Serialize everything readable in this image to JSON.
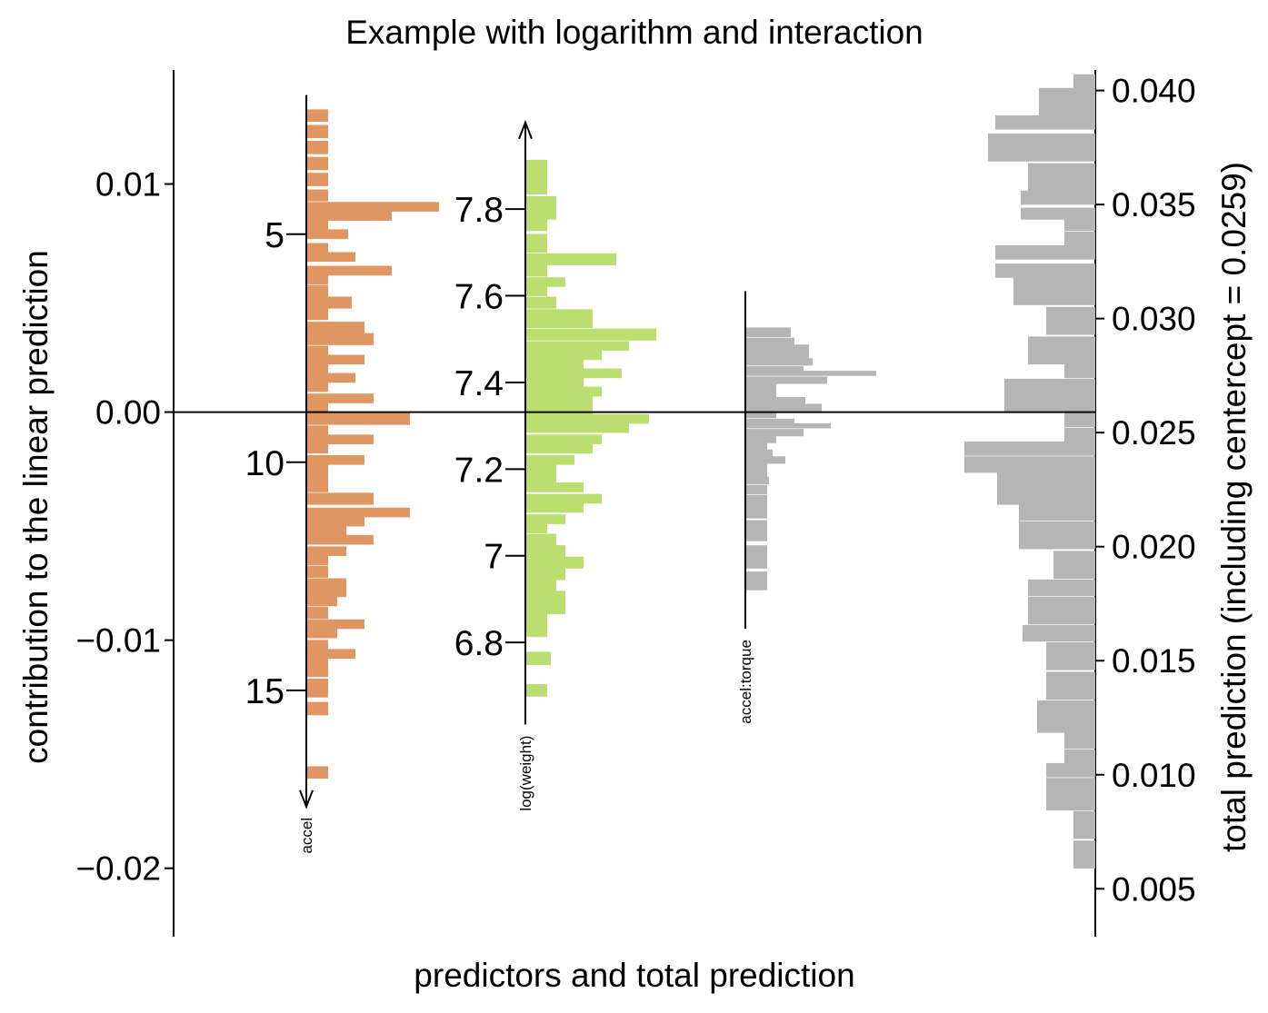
{
  "chart_data": {
    "type": "bar",
    "title": "Example with logarithm and interaction",
    "xlabel": "predictors and total prediction",
    "ylabel": "contribution to the linear prediction",
    "y2label": "total prediction (including centercept = 0.0259)",
    "ylim": [
      -0.023,
      0.015
    ],
    "yticks": [
      "0.01",
      "0.00",
      "−0.01",
      "−0.02"
    ],
    "ytick_values": [
      0.01,
      0.0,
      -0.01,
      -0.02
    ],
    "y2lim": [
      0.0029,
      0.0409
    ],
    "y2ticks": [
      "0.005",
      "0.010",
      "0.015",
      "0.020",
      "0.025",
      "0.030",
      "0.035",
      "0.040"
    ],
    "y2tick_values": [
      0.005,
      0.01,
      0.015,
      0.02,
      0.025,
      0.03,
      0.035,
      0.04
    ],
    "colors": {
      "accel": "#e09662",
      "log_weight": "#bade6f",
      "interaction": "#b5b5b5",
      "total": "#b5b5b5"
    },
    "predictors": [
      {
        "key": "accel",
        "label": "accel",
        "axis_direction": "down",
        "axis_range": [
          0.0139,
          -0.0173
        ],
        "ticks": [
          {
            "label": "5",
            "y": 0.0078
          },
          {
            "label": "10",
            "y": -0.0022
          },
          {
            "label": "15",
            "y": -0.0122
          }
        ],
        "hist_y": [
          0.013,
          0.0123,
          0.0116,
          0.0109,
          0.0102,
          0.0095,
          0.009,
          0.0086,
          0.0082,
          0.0078,
          0.0072,
          0.0068,
          0.0062,
          0.0058,
          0.0053,
          0.0048,
          0.0043,
          0.0037,
          0.0032,
          0.0027,
          0.0023,
          0.0019,
          0.0015,
          0.0011,
          0.0006,
          0.0002,
          -0.0003,
          -0.0008,
          -0.0012,
          -0.0016,
          -0.0021,
          -0.0025,
          -0.0029,
          -0.0033,
          -0.0038,
          -0.0044,
          -0.0048,
          -0.0052,
          -0.0056,
          -0.0061,
          -0.0065,
          -0.007,
          -0.0075,
          -0.0079,
          -0.0083,
          -0.0088,
          -0.0093,
          -0.0097,
          -0.0102,
          -0.0106,
          -0.011,
          -0.0114,
          -0.0119,
          -0.0123,
          -0.013,
          -0.0158
        ],
        "hist_counts": [
          24,
          24,
          24,
          24,
          24,
          24,
          146,
          94,
          24,
          46,
          24,
          54,
          94,
          24,
          24,
          50,
          24,
          64,
          74,
          24,
          64,
          24,
          54,
          24,
          74,
          24,
          114,
          24,
          74,
          24,
          64,
          24,
          24,
          24,
          74,
          114,
          64,
          44,
          74,
          44,
          24,
          24,
          44,
          44,
          34,
          24,
          64,
          34,
          24,
          54,
          24,
          24,
          24,
          24,
          24,
          24
        ]
      },
      {
        "key": "log_weight",
        "label": "log(weight)",
        "axis_direction": "up",
        "axis_range": [
          -0.0137,
          0.0127
        ],
        "ticks": [
          {
            "label": "7.8",
            "y": 0.0089
          },
          {
            "label": "7.6",
            "y": 0.0051
          },
          {
            "label": "7.4",
            "y": 0.0013
          },
          {
            "label": "7.2",
            "y": -0.0025
          },
          {
            "label": "7",
            "y": -0.0063
          },
          {
            "label": "6.8",
            "y": -0.0101
          }
        ],
        "hist_y": [
          0.0108,
          0.0103,
          0.0098,
          0.0092,
          0.0087,
          0.0082,
          0.0076,
          0.0072,
          0.0067,
          0.0062,
          0.0057,
          0.0053,
          0.0048,
          0.0043,
          0.0039,
          0.0034,
          0.0029,
          0.0025,
          0.0021,
          0.0017,
          0.0013,
          0.0009,
          0.0005,
          0.0001,
          -0.0003,
          -0.0007,
          -0.0012,
          -0.0016,
          -0.0021,
          -0.0025,
          -0.0029,
          -0.0033,
          -0.0038,
          -0.0042,
          -0.0047,
          -0.0051,
          -0.0056,
          -0.0061,
          -0.0066,
          -0.0071,
          -0.0076,
          -0.0081,
          -0.0086,
          -0.0091,
          -0.0096,
          -0.0108,
          -0.0122
        ],
        "hist_counts": [
          24,
          24,
          24,
          34,
          34,
          24,
          24,
          24,
          100,
          24,
          44,
          24,
          34,
          74,
          74,
          144,
          114,
          84,
          64,
          106,
          64,
          84,
          74,
          74,
          136,
          114,
          84,
          74,
          54,
          34,
          34,
          64,
          84,
          64,
          44,
          24,
          34,
          44,
          64,
          44,
          34,
          44,
          44,
          24,
          24,
          28,
          24
        ]
      },
      {
        "key": "interaction",
        "label": "accel:torque",
        "axis_direction": "none",
        "axis_range": [
          -0.0095,
          0.0053
        ],
        "ticks": [],
        "hist_y": [
          0.0035,
          0.0031,
          0.0028,
          0.0025,
          0.0022,
          0.0019,
          0.0017,
          0.0014,
          0.0011,
          0.0008,
          0.0005,
          0.0002,
          -0.0001,
          -0.0004,
          -0.0006,
          -0.0009,
          -0.0012,
          -0.0015,
          -0.0018,
          -0.0021,
          -0.0024,
          -0.0027,
          -0.003,
          -0.0034,
          -0.0039,
          -0.0044,
          -0.0049,
          -0.0052,
          -0.0055,
          -0.0061,
          -0.0066,
          -0.0072,
          -0.0076
        ],
        "hist_counts": [
          50,
          54,
          70,
          70,
          74,
          64,
          144,
          90,
          34,
          34,
          66,
          84,
          34,
          54,
          94,
          64,
          34,
          24,
          30,
          44,
          24,
          24,
          26,
          24,
          24,
          24,
          24,
          24,
          24,
          24,
          24,
          24,
          24
        ]
      }
    ],
    "total_prediction": {
      "hist_y": [
        0.0404,
        0.0398,
        0.0392,
        0.0386,
        0.0378,
        0.0372,
        0.0365,
        0.0359,
        0.0353,
        0.0346,
        0.0341,
        0.0335,
        0.0329,
        0.0321,
        0.0315,
        0.0309,
        0.0302,
        0.0296,
        0.0289,
        0.0283,
        0.0277,
        0.027,
        0.0263,
        0.0256,
        0.0249,
        0.0243,
        0.0236,
        0.0229,
        0.0222,
        0.0215,
        0.0208,
        0.0202,
        0.0195,
        0.0189,
        0.0182,
        0.0175,
        0.0169,
        0.0162,
        0.0155,
        0.0149,
        0.0142,
        0.0136,
        0.0129,
        0.0122,
        0.0115,
        0.0108,
        0.0102,
        0.0095,
        0.0088,
        0.0081,
        0.0075,
        0.0068,
        0.0062
      ],
      "hist_counts": [
        24,
        62,
        62,
        110,
        118,
        118,
        74,
        74,
        82,
        82,
        34,
        34,
        110,
        110,
        90,
        90,
        54,
        54,
        74,
        74,
        34,
        100,
        100,
        34,
        34,
        144,
        144,
        108,
        108,
        84,
        84,
        84,
        46,
        46,
        74,
        74,
        74,
        80,
        54,
        54,
        54,
        54,
        64,
        64,
        34,
        34,
        54,
        54,
        54,
        24,
        24,
        24,
        24
      ]
    }
  }
}
